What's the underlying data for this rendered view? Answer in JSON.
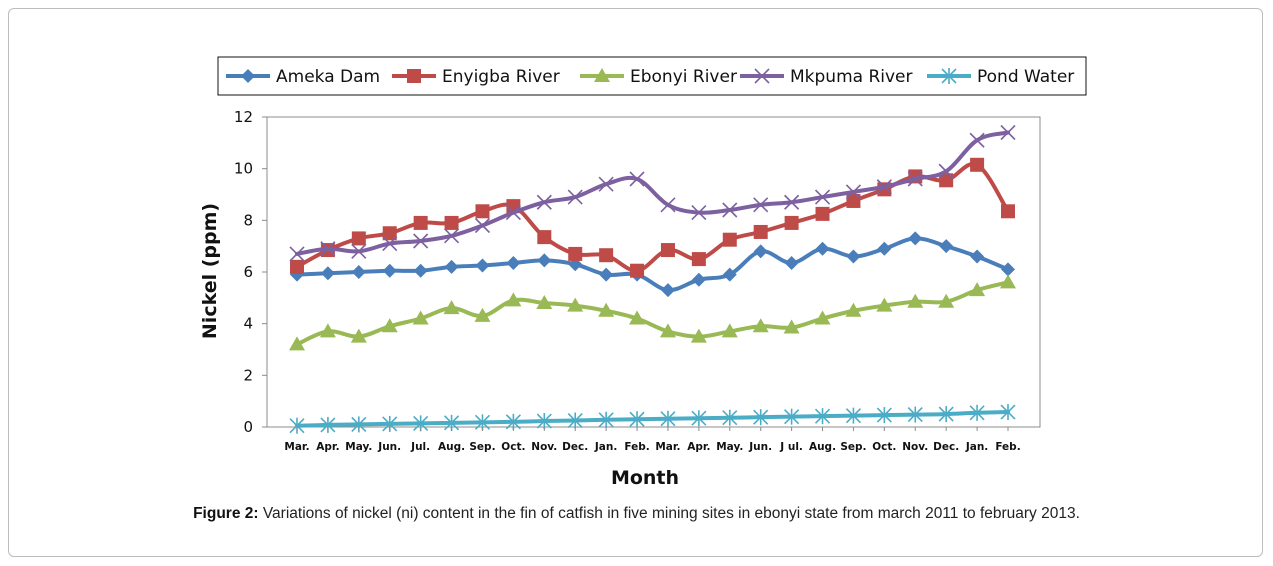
{
  "caption": {
    "label": "Figure 2:",
    "text": "Variations of nickel (ni) content in the fin of catfish in five mining sites in ebonyi state from march 2011 to february 2013."
  },
  "chart_data": {
    "type": "line",
    "xlabel": "Month",
    "ylabel": "Nickel (ppm)",
    "ylim": [
      0,
      12
    ],
    "yticks": [
      0,
      2,
      4,
      6,
      8,
      10,
      12
    ],
    "grid": false,
    "legend_position": "top",
    "x_tick_labels": [
      "Mar.",
      "Apr.",
      "May.",
      "Jun.",
      "Jul.",
      "Aug.",
      "Sep.",
      "Oct.",
      "Nov.",
      "Dec.",
      "Jan.",
      "Feb.",
      "Mar.",
      "Apr.",
      "May.",
      "Jun.",
      "J ul.",
      "Aug.",
      "Sep.",
      "Oct.",
      "Nov.",
      "Dec.",
      "Jan.",
      "Feb."
    ],
    "series": [
      {
        "name": "Ameka Dam",
        "color": "#4a7ebb",
        "marker": "diamond",
        "values": [
          5.9,
          5.95,
          6.0,
          6.05,
          6.05,
          6.2,
          6.25,
          6.35,
          6.45,
          6.3,
          5.9,
          5.9,
          5.3,
          5.7,
          5.9,
          6.8,
          6.35,
          6.9,
          6.6,
          6.9,
          7.3,
          7.0,
          6.6,
          6.1
        ]
      },
      {
        "name": "Enyigba River",
        "color": "#be4b48",
        "marker": "square",
        "values": [
          6.2,
          6.85,
          7.3,
          7.5,
          7.9,
          7.9,
          8.35,
          8.55,
          7.35,
          6.7,
          6.65,
          6.05,
          6.85,
          6.5,
          7.25,
          7.55,
          7.9,
          8.25,
          8.75,
          9.2,
          9.7,
          9.55,
          10.15,
          8.35
        ]
      },
      {
        "name": "Ebonyi River",
        "color": "#98b954",
        "marker": "triangle",
        "values": [
          3.2,
          3.7,
          3.5,
          3.9,
          4.2,
          4.6,
          4.3,
          4.9,
          4.8,
          4.7,
          4.5,
          4.2,
          3.7,
          3.5,
          3.7,
          3.9,
          3.85,
          4.2,
          4.5,
          4.7,
          4.85,
          4.85,
          5.3,
          5.6
        ]
      },
      {
        "name": "Mkpuma River",
        "color": "#7d60a0",
        "marker": "x",
        "values": [
          6.7,
          6.9,
          6.8,
          7.1,
          7.2,
          7.4,
          7.8,
          8.3,
          8.7,
          8.9,
          9.4,
          9.6,
          8.6,
          8.3,
          8.4,
          8.6,
          8.7,
          8.9,
          9.1,
          9.3,
          9.6,
          9.9,
          11.1,
          11.4
        ]
      },
      {
        "name": "Pond Water",
        "color": "#4bacc6",
        "marker": "asterisk",
        "values": [
          0.05,
          0.08,
          0.1,
          0.12,
          0.14,
          0.16,
          0.18,
          0.2,
          0.23,
          0.25,
          0.28,
          0.3,
          0.32,
          0.34,
          0.36,
          0.38,
          0.4,
          0.42,
          0.44,
          0.46,
          0.48,
          0.5,
          0.55,
          0.58
        ]
      }
    ]
  }
}
